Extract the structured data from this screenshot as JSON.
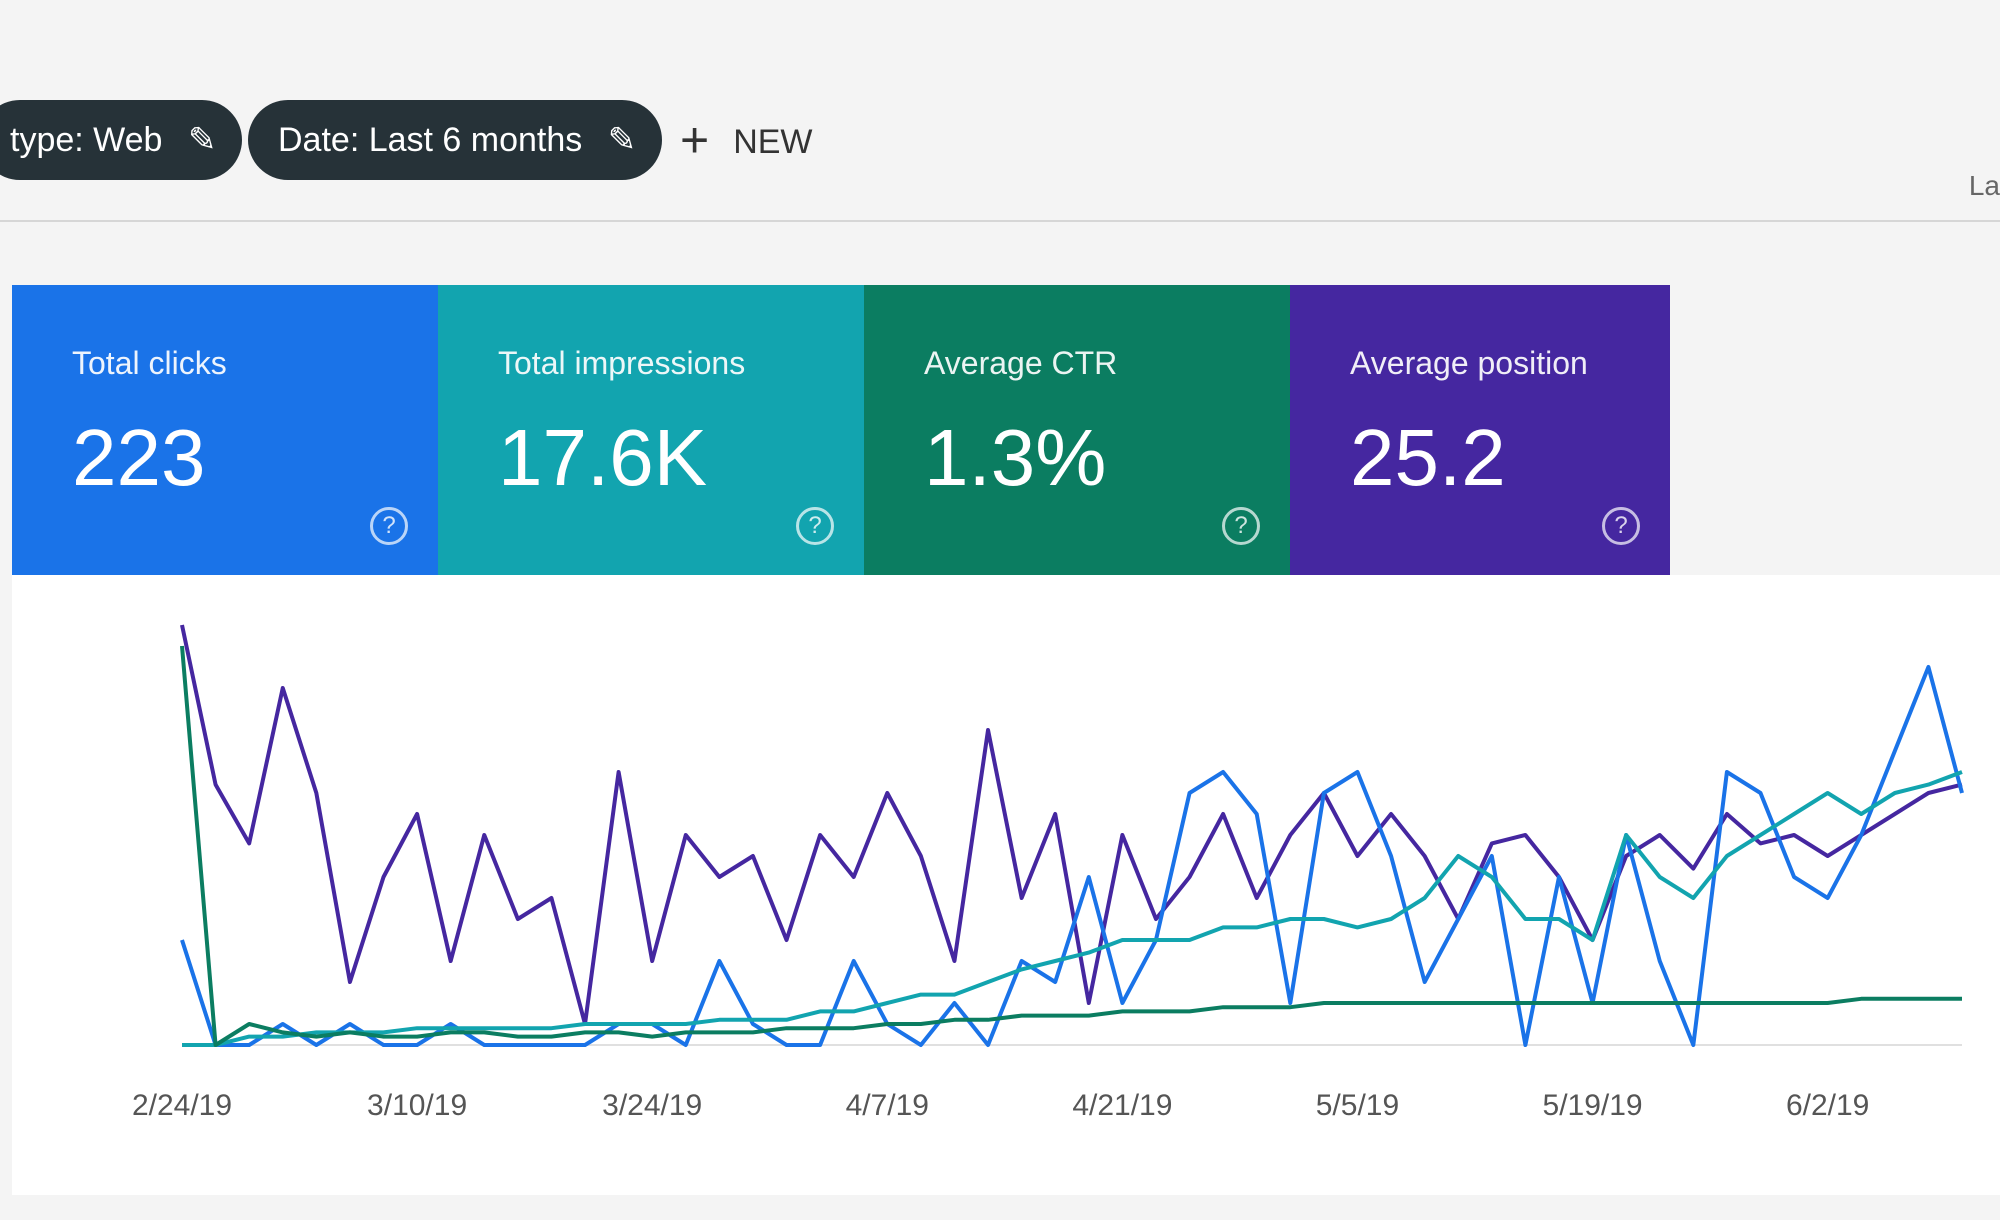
{
  "header": {
    "chips": [
      "type: Web",
      "Date: Last 6 months"
    ],
    "new_button": "NEW",
    "corner_text": "La"
  },
  "metrics": [
    {
      "label": "Total clicks",
      "value": "223"
    },
    {
      "label": "Total impressions",
      "value": "17.6K"
    },
    {
      "label": "Average CTR",
      "value": "1.3%"
    },
    {
      "label": "Average position",
      "value": "25.2"
    }
  ],
  "chart_data": {
    "type": "line",
    "categories": [
      "2/24/19",
      null,
      null,
      null,
      null,
      null,
      null,
      "3/10/19",
      null,
      null,
      null,
      null,
      null,
      null,
      "3/24/19",
      null,
      null,
      null,
      null,
      null,
      null,
      "4/7/19",
      null,
      null,
      null,
      null,
      null,
      null,
      "4/21/19",
      null,
      null,
      null,
      null,
      null,
      null,
      "5/5/19",
      null,
      null,
      null,
      null,
      null,
      null,
      "5/19/19",
      null,
      null,
      null,
      null,
      null,
      null,
      "6/2/19",
      null,
      null,
      null,
      null
    ],
    "ylim": [
      0,
      100
    ],
    "series": [
      {
        "color": "#4527a0",
        "values": [
          100,
          62,
          48,
          85,
          60,
          15,
          40,
          55,
          20,
          50,
          30,
          35,
          5,
          65,
          20,
          50,
          40,
          45,
          25,
          50,
          40,
          60,
          45,
          20,
          75,
          35,
          55,
          10,
          50,
          30,
          40,
          55,
          35,
          50,
          60,
          45,
          55,
          45,
          30,
          48,
          50,
          40,
          25,
          45,
          50,
          42,
          55,
          48,
          50,
          45,
          50,
          55,
          60,
          62
        ]
      },
      {
        "color": "#1a73e8",
        "values": [
          25,
          0,
          0,
          5,
          0,
          5,
          0,
          0,
          5,
          0,
          0,
          0,
          0,
          5,
          5,
          0,
          20,
          5,
          0,
          0,
          20,
          5,
          0,
          10,
          0,
          20,
          15,
          40,
          10,
          25,
          60,
          65,
          55,
          10,
          60,
          65,
          45,
          15,
          30,
          45,
          0,
          40,
          10,
          50,
          20,
          0,
          65,
          60,
          40,
          35,
          50,
          70,
          90,
          60
        ]
      },
      {
        "color": "#12a4af",
        "values": [
          0,
          0,
          2,
          2,
          3,
          3,
          3,
          4,
          4,
          4,
          4,
          4,
          5,
          5,
          5,
          5,
          6,
          6,
          6,
          8,
          8,
          10,
          12,
          12,
          15,
          18,
          20,
          22,
          25,
          25,
          25,
          28,
          28,
          30,
          30,
          28,
          30,
          35,
          45,
          40,
          30,
          30,
          25,
          50,
          40,
          35,
          45,
          50,
          55,
          60,
          55,
          60,
          62,
          65
        ]
      },
      {
        "color": "#0b7d61",
        "values": [
          95,
          0,
          5,
          3,
          2,
          3,
          2,
          2,
          3,
          3,
          2,
          2,
          3,
          3,
          2,
          3,
          3,
          3,
          4,
          4,
          4,
          5,
          5,
          6,
          6,
          7,
          7,
          7,
          8,
          8,
          8,
          9,
          9,
          9,
          10,
          10,
          10,
          10,
          10,
          10,
          10,
          10,
          10,
          10,
          10,
          10,
          10,
          10,
          10,
          10,
          11,
          11,
          11,
          11
        ]
      }
    ]
  }
}
